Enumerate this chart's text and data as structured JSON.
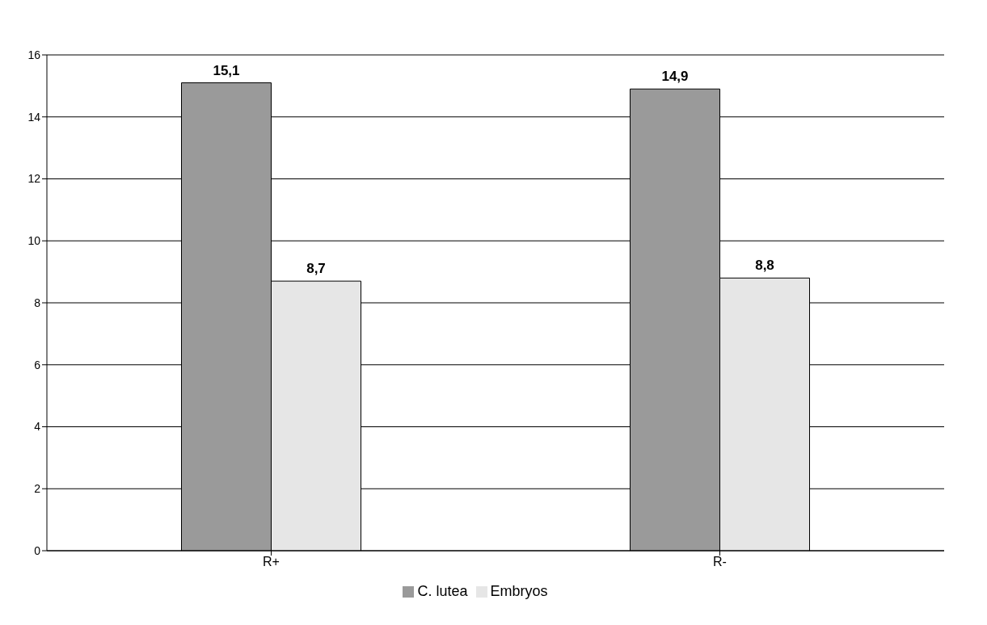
{
  "chart_data": {
    "type": "bar",
    "categories": [
      "R+",
      "R-"
    ],
    "series": [
      {
        "name": "C. lutea",
        "color": "#9a9a9a",
        "values": [
          15.1,
          14.9
        ],
        "value_labels": [
          "15,1",
          "14,9"
        ]
      },
      {
        "name": "Embryos",
        "color": "#e6e6e6",
        "values": [
          8.7,
          8.8
        ],
        "value_labels": [
          "8,7",
          "8,8"
        ]
      }
    ],
    "ylim": [
      0,
      16
    ],
    "yticks": [
      0,
      2,
      4,
      6,
      8,
      10,
      12,
      14,
      16
    ],
    "grid": "y",
    "legend": "bottom"
  }
}
